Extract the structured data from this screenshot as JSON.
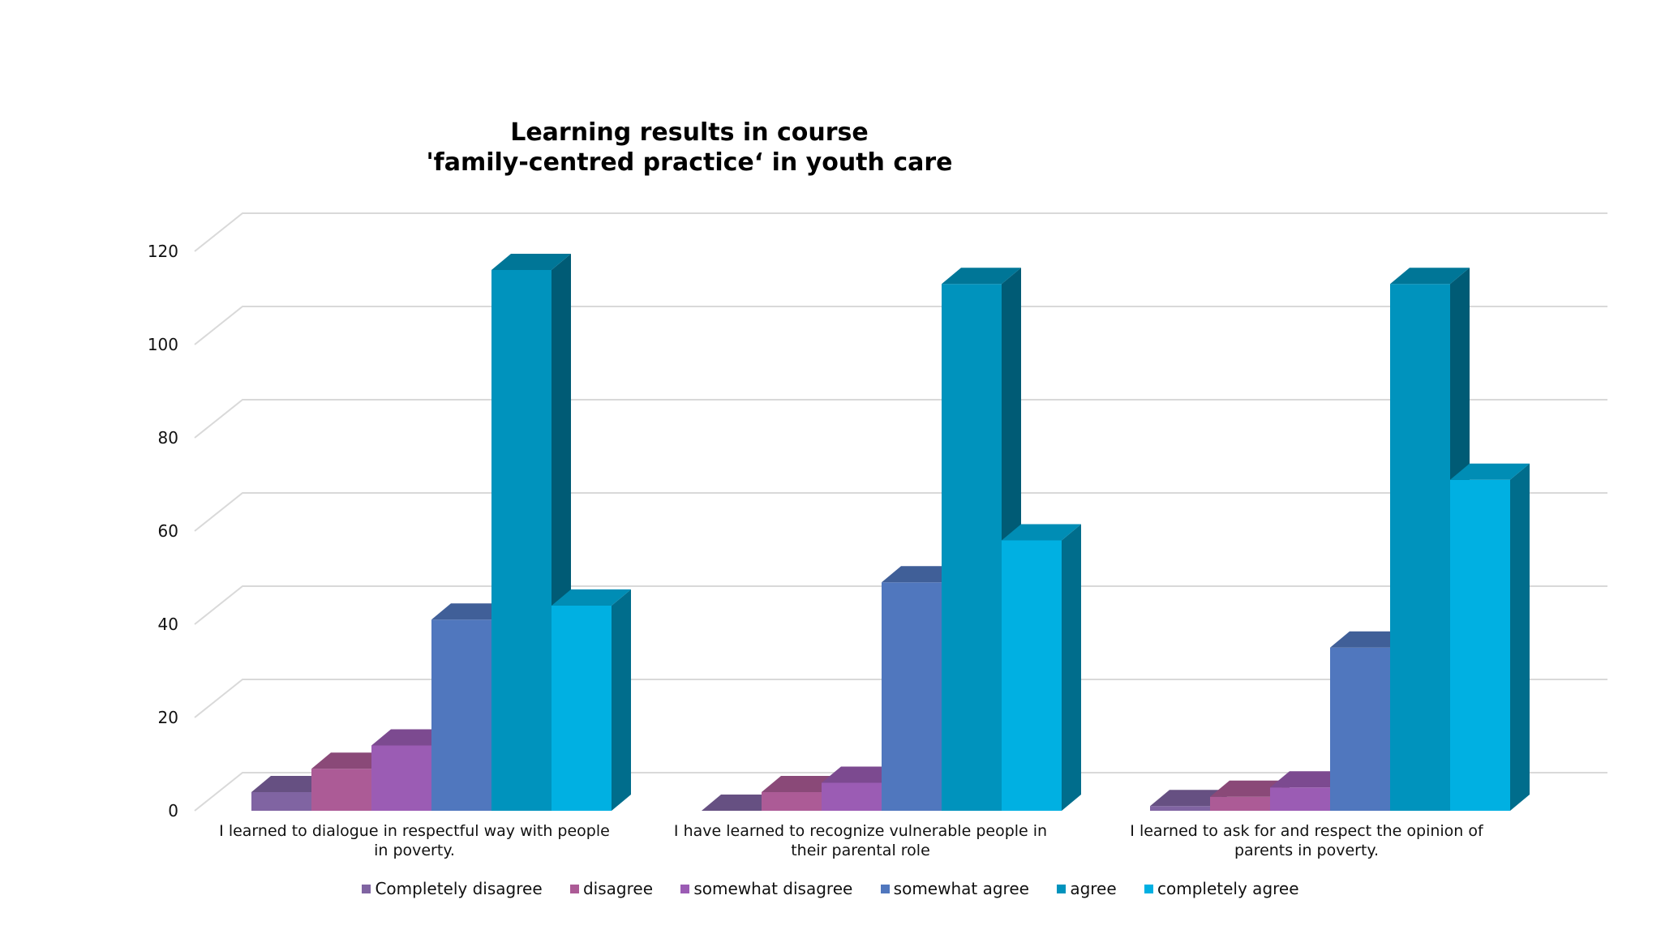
{
  "chart_data": {
    "type": "bar",
    "title_lines": [
      "Learning results in course",
      "'family-centred practice‘ in youth care"
    ],
    "categories": [
      {
        "line1": "I learned to dialogue in respectful way with people",
        "line2": "in poverty."
      },
      {
        "line1": "I have learned to recognize vulnerable people in",
        "line2": "their parental role"
      },
      {
        "line1": "I learned to ask for and respect the opinion of",
        "line2": "parents in poverty."
      }
    ],
    "series": [
      {
        "name": "Completely disagree",
        "values": [
          4,
          0,
          1
        ],
        "color": "#8064a2"
      },
      {
        "name": "disagree",
        "values": [
          9,
          4,
          3
        ],
        "color": "#ac5b96"
      },
      {
        "name": "somewhat disagree",
        "values": [
          14,
          6,
          5
        ],
        "color": "#9b5cb4"
      },
      {
        "name": "somewhat agree",
        "values": [
          41,
          49,
          35
        ],
        "color": "#5077be"
      },
      {
        "name": "agree",
        "values": [
          116,
          113,
          113
        ],
        "color": "#0093bd"
      },
      {
        "name": "completely agree",
        "values": [
          44,
          58,
          71
        ],
        "color": "#00b0e2"
      }
    ],
    "yticks": [
      0,
      20,
      40,
      60,
      80,
      100,
      120
    ],
    "ylim": [
      0,
      120
    ],
    "xlabel": "",
    "ylabel": "",
    "legend_position": "bottom",
    "grid": true
  }
}
